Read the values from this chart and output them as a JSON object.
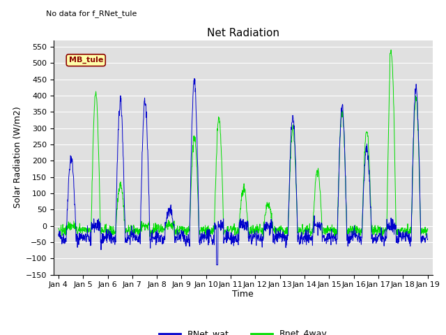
{
  "title": "Net Radiation",
  "ylabel": "Solar Radiation (W/m2)",
  "xlabel": "Time",
  "annotation": "No data for f_RNet_tule",
  "legend_box_label": "MB_tule",
  "ylim": [
    -150,
    570
  ],
  "yticks": [
    -150,
    -100,
    -50,
    0,
    50,
    100,
    150,
    200,
    250,
    300,
    350,
    400,
    450,
    500,
    550
  ],
  "xtick_labels": [
    "Jan 4",
    "Jan 5",
    "Jan 6",
    "Jan 7",
    "Jan 8",
    "Jan 9",
    "Jan 10",
    "Jan 11",
    "Jan 12",
    "Jan 13",
    "Jan 14",
    "Jan 15",
    "Jan 16",
    "Jan 17",
    "Jan 18",
    "Jan 19"
  ],
  "line1_color": "#0000cc",
  "line2_color": "#00dd00",
  "line1_label": "RNet_wat",
  "line2_label": "Rnet_4way",
  "bg_color": "#e0e0e0",
  "legend_box_facecolor": "#ffffaa",
  "legend_box_edgecolor": "#8b0000",
  "title_fontsize": 11,
  "label_fontsize": 9,
  "tick_fontsize": 8,
  "annotation_fontsize": 8,
  "legend_fontsize": 9
}
